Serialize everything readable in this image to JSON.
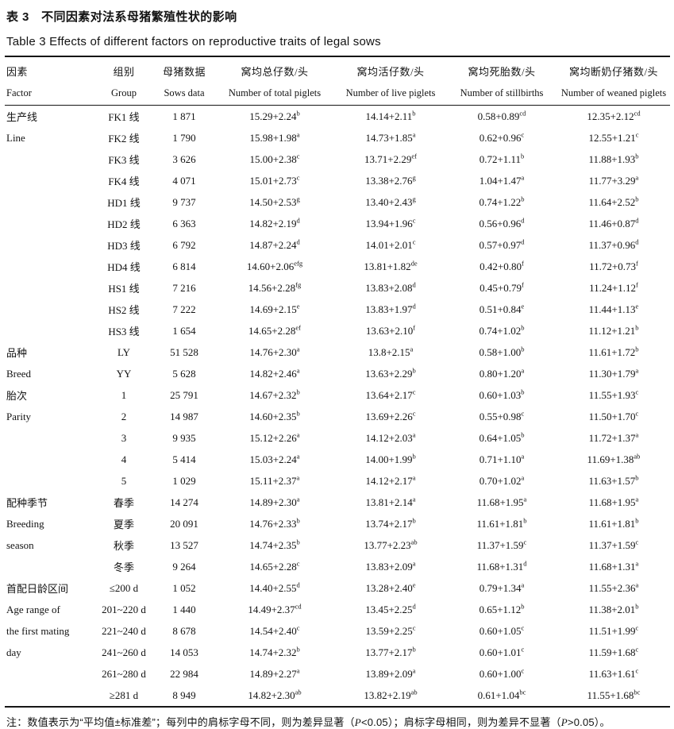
{
  "title_cn": "表 3　不同因素对法系母猪繁殖性状的影响",
  "title_en": "Table 3  Effects of different factors on reproductive traits of legal sows",
  "columns": {
    "factor_cn": "因素",
    "factor_en": "Factor",
    "group_cn": "组别",
    "group_en": "Group",
    "sows_cn": "母猪数据",
    "sows_en": "Sows data",
    "total_cn": "窝均总仔数/头",
    "total_en": "Number of total piglets",
    "live_cn": "窝均活仔数/头",
    "live_en": "Number of live piglets",
    "still_cn": "窝均死胎数/头",
    "still_en": "Number of stillbirths",
    "weaned_cn": "窝均断奶仔猪数/头",
    "weaned_en": "Number of weaned piglets"
  },
  "rows": [
    {
      "factor": "生产线",
      "group": "FK1 线",
      "sows": "1 871",
      "total": [
        "15.29+2.24",
        "b"
      ],
      "live": [
        "14.14+2.11",
        "b"
      ],
      "still": [
        "0.58+0.89",
        "cd"
      ],
      "weaned": [
        "12.35+2.12",
        "cd"
      ]
    },
    {
      "factor": "Line",
      "group": "FK2 线",
      "sows": "1 790",
      "total": [
        "15.98+1.98",
        "a"
      ],
      "live": [
        "14.73+1.85",
        "a"
      ],
      "still": [
        "0.62+0.96",
        "c"
      ],
      "weaned": [
        "12.55+1.21",
        "c"
      ]
    },
    {
      "factor": "",
      "group": "FK3 线",
      "sows": "3 626",
      "total": [
        "15.00+2.38",
        "c"
      ],
      "live": [
        "13.71+2.29",
        "ef"
      ],
      "still": [
        "0.72+1.11",
        "b"
      ],
      "weaned": [
        "11.88+1.93",
        "b"
      ]
    },
    {
      "factor": "",
      "group": "FK4 线",
      "sows": "4 071",
      "total": [
        "15.01+2.73",
        "c"
      ],
      "live": [
        "13.38+2.76",
        "g"
      ],
      "still": [
        "1.04+1.47",
        "a"
      ],
      "weaned": [
        "11.77+3.29",
        "a"
      ]
    },
    {
      "factor": "",
      "group": "HD1 线",
      "sows": "9 737",
      "total": [
        "14.50+2.53",
        "g"
      ],
      "live": [
        "13.40+2.43",
        "g"
      ],
      "still": [
        "0.74+1.22",
        "b"
      ],
      "weaned": [
        "11.64+2.52",
        "b"
      ]
    },
    {
      "factor": "",
      "group": "HD2 线",
      "sows": "6 363",
      "total": [
        "14.82+2.19",
        "d"
      ],
      "live": [
        "13.94+1.96",
        "c"
      ],
      "still": [
        "0.56+0.96",
        "d"
      ],
      "weaned": [
        "11.46+0.87",
        "d"
      ]
    },
    {
      "factor": "",
      "group": "HD3 线",
      "sows": "6 792",
      "total": [
        "14.87+2.24",
        "d"
      ],
      "live": [
        "14.01+2.01",
        "c"
      ],
      "still": [
        "0.57+0.97",
        "d"
      ],
      "weaned": [
        "11.37+0.96",
        "d"
      ]
    },
    {
      "factor": "",
      "group": "HD4 线",
      "sows": "6 814",
      "total": [
        "14.60+2.06",
        "efg"
      ],
      "live": [
        "13.81+1.82",
        "de"
      ],
      "still": [
        "0.42+0.80",
        "f"
      ],
      "weaned": [
        "11.72+0.73",
        "f"
      ]
    },
    {
      "factor": "",
      "group": "HS1 线",
      "sows": "7 216",
      "total": [
        "14.56+2.28",
        "fg"
      ],
      "live": [
        "13.83+2.08",
        "d"
      ],
      "still": [
        "0.45+0.79",
        "f"
      ],
      "weaned": [
        "11.24+1.12",
        "f"
      ]
    },
    {
      "factor": "",
      "group": "HS2 线",
      "sows": "7 222",
      "total": [
        "14.69+2.15",
        "e"
      ],
      "live": [
        "13.83+1.97",
        "d"
      ],
      "still": [
        "0.51+0.84",
        "e"
      ],
      "weaned": [
        "11.44+1.13",
        "e"
      ]
    },
    {
      "factor": "",
      "group": "HS3 线",
      "sows": "1 654",
      "total": [
        "14.65+2.28",
        "ef"
      ],
      "live": [
        "13.63+2.10",
        "f"
      ],
      "still": [
        "0.74+1.02",
        "b"
      ],
      "weaned": [
        "11.12+1.21",
        "b"
      ]
    },
    {
      "factor": "品种",
      "group": "LY",
      "sows": "51 528",
      "total": [
        "14.76+2.30",
        "a"
      ],
      "live": [
        "13.8+2.15",
        "a"
      ],
      "still": [
        "0.58+1.00",
        "b"
      ],
      "weaned": [
        "11.61+1.72",
        "b"
      ]
    },
    {
      "factor": "Breed",
      "group": "YY",
      "sows": "5 628",
      "total": [
        "14.82+2.46",
        "a"
      ],
      "live": [
        "13.63+2.29",
        "b"
      ],
      "still": [
        "0.80+1.20",
        "a"
      ],
      "weaned": [
        "11.30+1.79",
        "a"
      ]
    },
    {
      "factor": "胎次",
      "group": "1",
      "sows": "25 791",
      "total": [
        "14.67+2.32",
        "b"
      ],
      "live": [
        "13.64+2.17",
        "c"
      ],
      "still": [
        "0.60+1.03",
        "b"
      ],
      "weaned": [
        "11.55+1.93",
        "c"
      ]
    },
    {
      "factor": "Parity",
      "group": "2",
      "sows": "14 987",
      "total": [
        "14.60+2.35",
        "b"
      ],
      "live": [
        "13.69+2.26",
        "c"
      ],
      "still": [
        "0.55+0.98",
        "c"
      ],
      "weaned": [
        "11.50+1.70",
        "c"
      ]
    },
    {
      "factor": "",
      "group": "3",
      "sows": "9 935",
      "total": [
        "15.12+2.26",
        "a"
      ],
      "live": [
        "14.12+2.03",
        "a"
      ],
      "still": [
        "0.64+1.05",
        "b"
      ],
      "weaned": [
        "11.72+1.37",
        "a"
      ]
    },
    {
      "factor": "",
      "group": "4",
      "sows": "5 414",
      "total": [
        "15.03+2.24",
        "a"
      ],
      "live": [
        "14.00+1.99",
        "b"
      ],
      "still": [
        "0.71+1.10",
        "a"
      ],
      "weaned": [
        "11.69+1.38",
        "ab"
      ]
    },
    {
      "factor": "",
      "group": "5",
      "sows": "1 029",
      "total": [
        "15.11+2.37",
        "a"
      ],
      "live": [
        "14.12+2.17",
        "a"
      ],
      "still": [
        "0.70+1.02",
        "a"
      ],
      "weaned": [
        "11.63+1.57",
        "b"
      ]
    },
    {
      "factor": "配种季节",
      "group": "春季",
      "sows": "14 274",
      "total": [
        "14.89+2.30",
        "a"
      ],
      "live": [
        "13.81+2.14",
        "a"
      ],
      "still": [
        "11.68+1.95",
        "a"
      ],
      "weaned": [
        "11.68+1.95",
        "a"
      ]
    },
    {
      "factor": "Breeding",
      "group": "夏季",
      "sows": "20 091",
      "total": [
        "14.76+2.33",
        "b"
      ],
      "live": [
        "13.74+2.17",
        "b"
      ],
      "still": [
        "11.61+1.81",
        "b"
      ],
      "weaned": [
        "11.61+1.81",
        "b"
      ]
    },
    {
      "factor": "season",
      "group": "秋季",
      "sows": "13 527",
      "total": [
        "14.74+2.35",
        "b"
      ],
      "live": [
        "13.77+2.23",
        "ab"
      ],
      "still": [
        "11.37+1.59",
        "c"
      ],
      "weaned": [
        "11.37+1.59",
        "c"
      ]
    },
    {
      "factor": "",
      "group": "冬季",
      "sows": "9 264",
      "total": [
        "14.65+2.28",
        "c"
      ],
      "live": [
        "13.83+2.09",
        "a"
      ],
      "still": [
        "11.68+1.31",
        "d"
      ],
      "weaned": [
        "11.68+1.31",
        "a"
      ]
    },
    {
      "factor": "首配日龄区间",
      "group": "≤200 d",
      "sows": "1 052",
      "total": [
        "14.40+2.55",
        "d"
      ],
      "live": [
        "13.28+2.40",
        "e"
      ],
      "still": [
        "0.79+1.34",
        "a"
      ],
      "weaned": [
        "11.55+2.36",
        "a"
      ]
    },
    {
      "factor": "Age range of",
      "group": "201~220 d",
      "sows": "1 440",
      "total": [
        "14.49+2.37",
        "cd"
      ],
      "live": [
        "13.45+2.25",
        "d"
      ],
      "still": [
        "0.65+1.12",
        "b"
      ],
      "weaned": [
        "11.38+2.01",
        "b"
      ]
    },
    {
      "factor": "the first mating",
      "group": "221~240 d",
      "sows": "8 678",
      "total": [
        "14.54+2.40",
        "c"
      ],
      "live": [
        "13.59+2.25",
        "c"
      ],
      "still": [
        "0.60+1.05",
        "c"
      ],
      "weaned": [
        "11.51+1.99",
        "c"
      ]
    },
    {
      "factor": "day",
      "group": "241~260 d",
      "sows": "14 053",
      "total": [
        "14.74+2.32",
        "b"
      ],
      "live": [
        "13.77+2.17",
        "b"
      ],
      "still": [
        "0.60+1.01",
        "c"
      ],
      "weaned": [
        "11.59+1.68",
        "c"
      ]
    },
    {
      "factor": "",
      "group": "261~280 d",
      "sows": "22 984",
      "total": [
        "14.89+2.27",
        "a"
      ],
      "live": [
        "13.89+2.09",
        "a"
      ],
      "still": [
        "0.60+1.00",
        "c"
      ],
      "weaned": [
        "11.63+1.61",
        "c"
      ]
    },
    {
      "factor": "",
      "group": "≥281 d",
      "sows": "8 949",
      "total": [
        "14.82+2.30",
        "ab"
      ],
      "live": [
        "13.82+2.19",
        "ab"
      ],
      "still": [
        "0.61+1.04",
        "bc"
      ],
      "weaned": [
        "11.55+1.68",
        "bc"
      ]
    }
  ],
  "note": {
    "seg1": "注：数值表示为“平均值±标准差”；每列中的肩标字母不同，则为差异显著（",
    "p1": "P",
    "seg2": "<0.05）；肩标字母相同，则为差异不显著（",
    "p2": "P",
    "seg3": ">0.05）。"
  }
}
